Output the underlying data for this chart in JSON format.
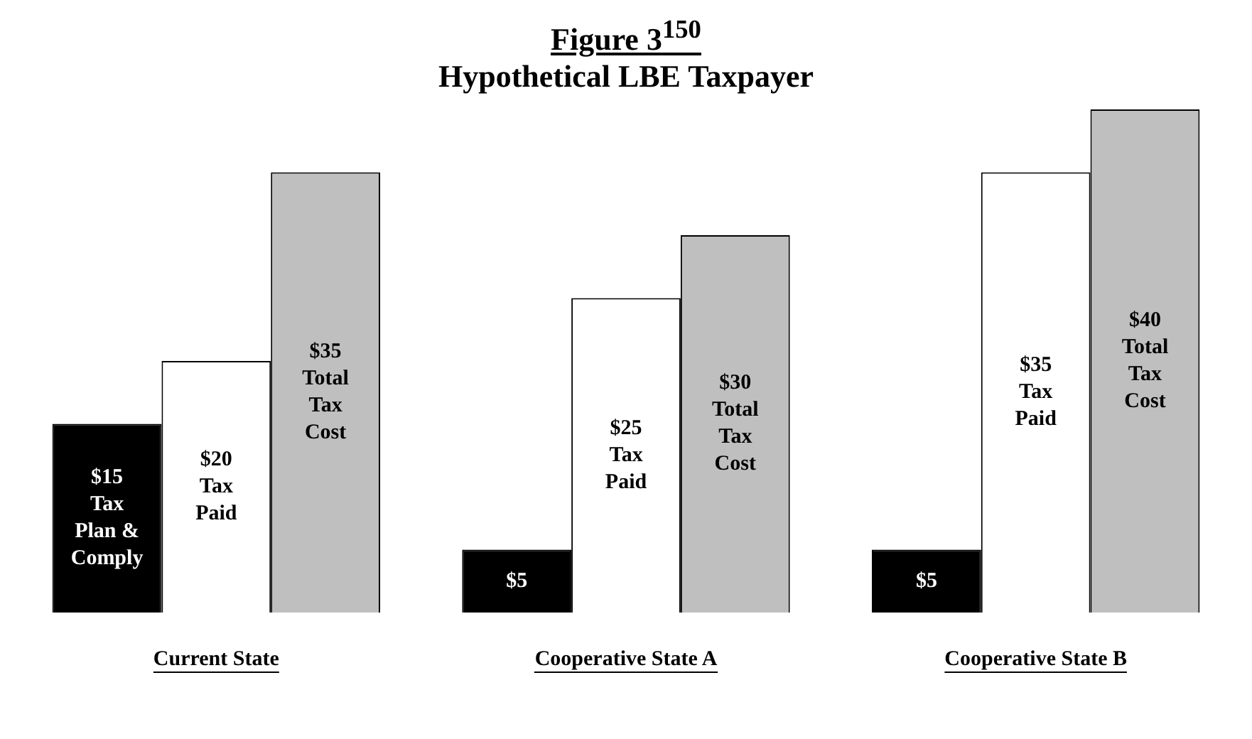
{
  "chart_data": {
    "type": "bar",
    "title": "Figure 3$^{150}$",
    "subtitle": "Hypothetical LBE Taxpayer",
    "categories": [
      "Current State",
      "Cooperative State A",
      "Cooperative State B"
    ],
    "legend": false,
    "series": [
      {
        "color": "#000000",
        "values": [
          15,
          5,
          5
        ],
        "value_labels": [
          "$15\nTax\nPlan &\nComply",
          "$5",
          "$5"
        ]
      },
      {
        "color": "#ffffff",
        "values": [
          20,
          25,
          35
        ],
        "value_labels": [
          "$20\nTax\nPaid",
          "$25\nTax\nPaid",
          "$35\nTax\nPaid"
        ]
      },
      {
        "color": "#bfbfbf",
        "values": [
          35,
          30,
          40
        ],
        "value_labels": [
          "$35\nTotal\nTax\nCost",
          "$30\nTotal\nTax\nCost",
          "$40\nTotal\nTax\nCost"
        ]
      }
    ]
  }
}
